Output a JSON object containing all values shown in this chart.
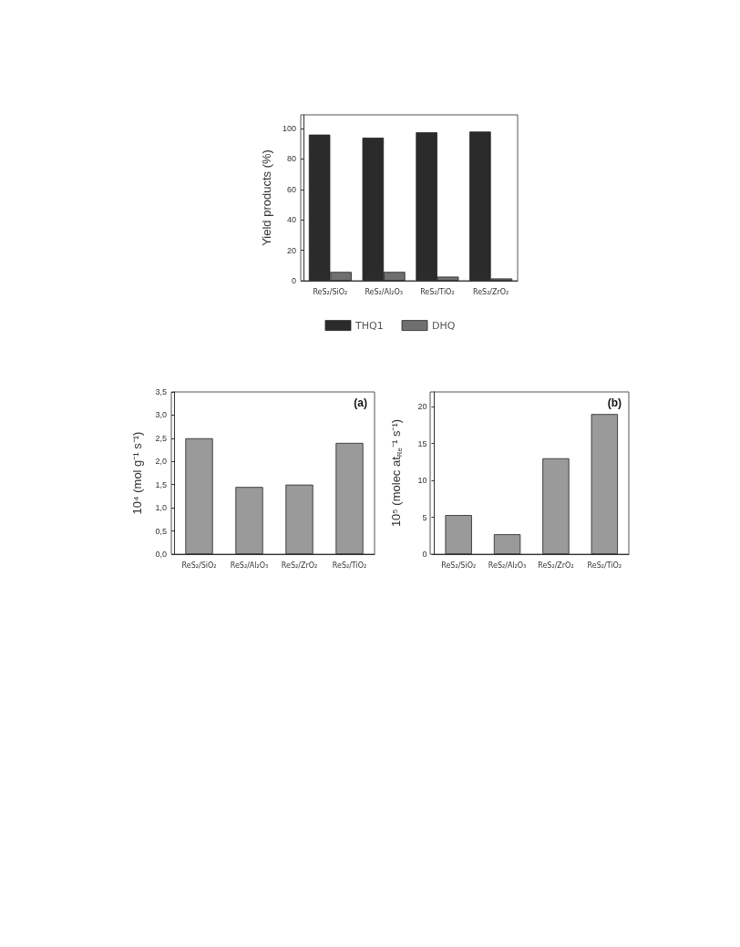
{
  "chart_data": [
    {
      "type": "bar",
      "ylabel": "Yield products (%)",
      "categories": [
        "ReS₂/SiO₂",
        "ReS₂/Al₂O₃",
        "ReS₂/TiO₂",
        "ReS₂/ZrO₂"
      ],
      "series": [
        {
          "name": "THQ1",
          "color": "#2b2b2b",
          "values": [
            96,
            94,
            97.5,
            98
          ]
        },
        {
          "name": "DHQ",
          "color": "#707070",
          "values": [
            5.8,
            5.8,
            2.7,
            1.5
          ]
        }
      ],
      "ylim": [
        0,
        109
      ],
      "yticks": [
        0,
        20,
        40,
        60,
        80,
        100
      ],
      "legend": "bottom",
      "grid": false
    },
    {
      "type": "bar",
      "ylabel": "10⁴ (mol g⁻¹ s⁻¹)",
      "annotations": [
        "(a)"
      ],
      "categories": [
        "ReS₂/SiO₂",
        "ReS₂/Al₂O₃",
        "ReS₂/ZrO₂",
        "ReS₂/TiO₂"
      ],
      "values": [
        2.5,
        1.45,
        1.5,
        2.4
      ],
      "color": "#9a9a9a",
      "ylim": [
        0,
        3.5
      ],
      "yticks": [
        {
          "value": 0,
          "label": "0,0"
        },
        {
          "value": 0.5,
          "label": "0,5"
        },
        {
          "value": 1,
          "label": "1,0"
        },
        {
          "value": 1.5,
          "label": "1,5"
        },
        {
          "value": 2,
          "label": "2,0"
        },
        {
          "value": 2.5,
          "label": "2,5"
        },
        {
          "value": 3,
          "label": "3,0"
        },
        {
          "value": 3.5,
          "label": "3,5"
        }
      ],
      "grid": false
    },
    {
      "type": "bar",
      "ylabel": "10⁵ (molec at$_{Re}$⁻¹ s⁻¹)",
      "annotations": [
        "(b)"
      ],
      "categories": [
        "ReS₂/SiO₂",
        "ReS₂/Al₂O₃",
        "ReS₂/ZrO₂",
        "ReS₂/TiO₂"
      ],
      "values": [
        5.3,
        2.7,
        13,
        19
      ],
      "color": "#9a9a9a",
      "ylim": [
        0,
        22
      ],
      "yticks": [
        0,
        5,
        10,
        15,
        20
      ],
      "grid": false
    }
  ]
}
